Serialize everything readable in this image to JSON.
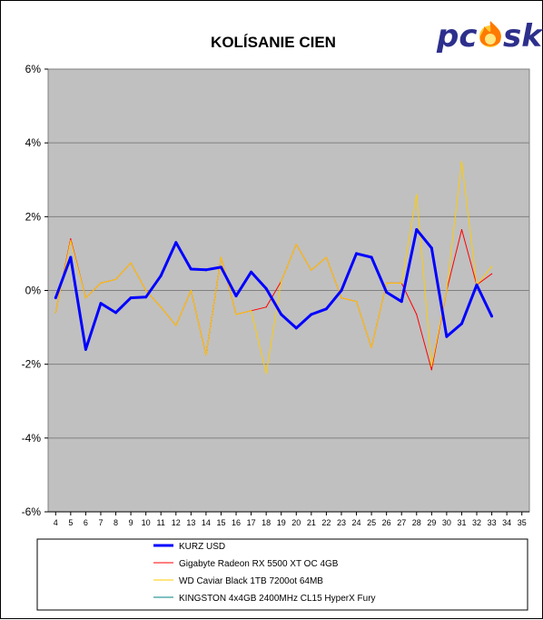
{
  "chart_data": {
    "type": "line",
    "title": "KOLÍSANIE CIEN",
    "xlabel": "",
    "ylabel": "",
    "ylim": [
      -0.06,
      0.06
    ],
    "yticks": [
      -0.06,
      -0.04,
      -0.02,
      0,
      0.02,
      0.04,
      0.06
    ],
    "ytick_labels": [
      "-6%",
      "-4%",
      "-2%",
      "0%",
      "2%",
      "4%",
      "6%"
    ],
    "xlim": [
      3.5,
      35.5
    ],
    "xticks": [
      4,
      5,
      6,
      7,
      8,
      9,
      10,
      11,
      12,
      13,
      14,
      15,
      16,
      17,
      18,
      19,
      20,
      21,
      22,
      23,
      24,
      25,
      26,
      27,
      28,
      29,
      30,
      31,
      32,
      33,
      34,
      35
    ],
    "grid": true,
    "legend_position": "bottom",
    "plot_background": "#c0c0c0",
    "series": [
      {
        "name": "Gigabyte Radeon RX 5500 XT OC 4GB",
        "color": "#ff0000",
        "line_width": 1,
        "x": [
          4,
          5,
          6,
          7,
          8,
          9,
          10,
          11,
          12,
          13,
          14,
          15,
          16,
          17,
          18,
          19,
          20,
          21,
          22,
          23,
          24,
          25,
          26,
          27,
          28,
          29,
          30,
          31,
          32,
          33
        ],
        "values": [
          -0.006,
          0.014,
          -0.002,
          0.002,
          0.003,
          0.0075,
          0.0,
          -0.0045,
          -0.0095,
          0.0,
          -0.0175,
          0.009,
          -0.0065,
          -0.0055,
          -0.0045,
          0.0025,
          0.0125,
          0.0055,
          0.009,
          -0.002,
          -0.003,
          -0.0155,
          0.002,
          0.002,
          -0.0065,
          -0.0215,
          0.0,
          0.0165,
          0.0015,
          0.0045
        ]
      },
      {
        "name": "WD Caviar Black 1TB 7200ot 64MB",
        "color": "#ffcc00",
        "line_width": 1,
        "x": [
          4,
          5,
          6,
          7,
          8,
          9,
          10,
          11,
          12,
          13,
          14,
          15,
          16,
          17,
          18,
          19,
          20,
          21,
          22,
          23,
          24,
          25,
          26,
          27,
          28,
          29,
          30,
          31,
          32,
          33
        ],
        "values": [
          -0.006,
          0.0135,
          -0.002,
          0.002,
          0.003,
          0.0075,
          0.0,
          -0.0045,
          -0.0095,
          0.0,
          -0.0175,
          0.009,
          -0.0065,
          -0.0055,
          -0.0225,
          0.0025,
          0.0125,
          0.0055,
          0.009,
          -0.002,
          -0.003,
          -0.0155,
          0.002,
          0.002,
          0.026,
          -0.0205,
          0.0,
          0.035,
          0.0015,
          0.0065
        ]
      },
      {
        "name": "KURZ USD",
        "color": "#0000ff",
        "line_width": 3,
        "x": [
          4,
          5,
          6,
          7,
          8,
          9,
          10,
          11,
          12,
          13,
          14,
          15,
          16,
          17,
          18,
          19,
          20,
          21,
          22,
          23,
          24,
          25,
          26,
          27,
          28,
          29,
          30,
          31,
          32,
          33
        ],
        "values": [
          -0.002,
          0.009,
          -0.016,
          -0.0035,
          -0.006,
          -0.002,
          -0.0018,
          0.004,
          0.013,
          0.0058,
          0.0056,
          0.0063,
          -0.0015,
          0.005,
          0.0005,
          -0.0065,
          -0.0102,
          -0.0065,
          -0.005,
          0.0,
          0.01,
          0.009,
          -0.0005,
          -0.003,
          0.0165,
          0.0115,
          -0.0125,
          -0.009,
          0.0015,
          -0.007
        ]
      }
    ],
    "legend": [
      {
        "label": "KURZ USD",
        "color": "#0000ff",
        "bold_line": true
      },
      {
        "label": "Gigabyte Radeon RX 5500 XT OC 4GB",
        "color": "#ff0000",
        "bold_line": false
      },
      {
        "label": "WD Caviar Black 1TB 7200ot 64MB",
        "color": "#ffcc00",
        "bold_line": false
      },
      {
        "label": "KINGSTON 4x4GB 2400MHz CL15 HyperX Fury",
        "color": "#008080",
        "bold_line": false
      }
    ]
  },
  "logo": {
    "text_pc": "pc",
    "text_sk": "sk",
    "color_text": "#2d2f8c",
    "color_flame": "#ff7a00"
  }
}
